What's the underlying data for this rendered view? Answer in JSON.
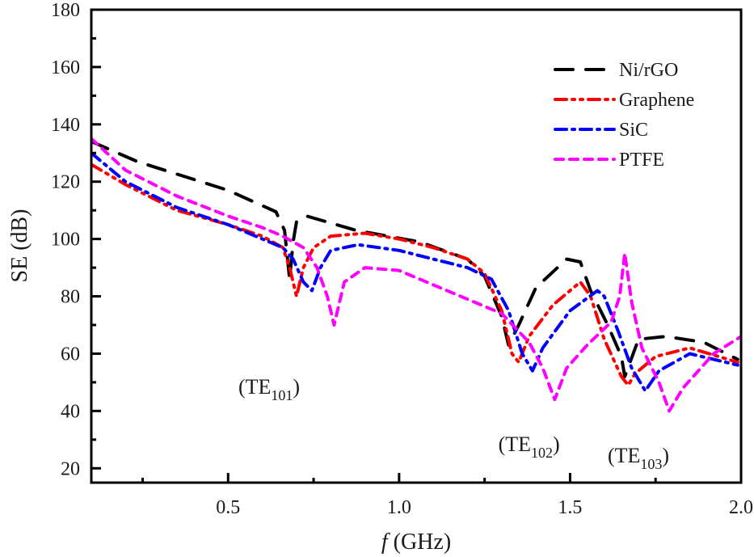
{
  "chart_data": {
    "type": "line",
    "title": "",
    "xlabel_italic": "f",
    "xlabel_rest": " (GHz)",
    "ylabel": "SE (dB)",
    "xlim": [
      0.1,
      2.0
    ],
    "ylim": [
      15,
      180
    ],
    "xticks": [
      0.5,
      1.0,
      1.5,
      2.0
    ],
    "xtick_labels": [
      "0.5",
      "1.0",
      "1.5",
      "2.0"
    ],
    "xminor": [
      0.25,
      0.75,
      1.25,
      1.75
    ],
    "yticks": [
      20,
      40,
      60,
      80,
      100,
      120,
      140,
      160,
      180
    ],
    "ytick_labels": [
      "20",
      "40",
      "60",
      "80",
      "100",
      "120",
      "140",
      "160",
      "180"
    ],
    "yminor": [
      30,
      50,
      70,
      90,
      110,
      130,
      150,
      170
    ],
    "grid": false,
    "legend_position": "top-right",
    "series": [
      {
        "name": "Ni/rGO",
        "color": "#000000",
        "style": "dash",
        "x": [
          0.1,
          0.235,
          0.5,
          0.64,
          0.665,
          0.68,
          0.69,
          0.7,
          0.73,
          0.875,
          1.06,
          1.2,
          1.25,
          1.3,
          1.32,
          1.35,
          1.4,
          1.49,
          1.53,
          1.56,
          1.61,
          1.65,
          1.66,
          1.7,
          1.78,
          1.89,
          1.99
        ],
        "y": [
          134,
          127,
          117,
          109.5,
          103,
          86,
          99,
          106,
          108,
          103,
          99,
          93,
          87,
          73,
          63,
          70,
          83,
          93,
          92,
          82,
          70,
          59,
          52,
          65,
          66,
          64,
          58
        ]
      },
      {
        "name": "Graphene",
        "color": "#ff0000",
        "style": "dash-dot-dot",
        "x": [
          0.1,
          0.2,
          0.35,
          0.5,
          0.6,
          0.66,
          0.68,
          0.7,
          0.72,
          0.75,
          0.8,
          0.9,
          1.0,
          1.1,
          1.2,
          1.25,
          1.3,
          1.33,
          1.35,
          1.38,
          1.45,
          1.53,
          1.56,
          1.6,
          1.65,
          1.67,
          1.69,
          1.75,
          1.85,
          1.99
        ],
        "y": [
          126,
          119,
          110,
          105,
          101,
          97,
          90,
          80,
          90,
          97,
          101,
          102,
          100,
          97,
          93,
          88,
          75,
          60,
          57,
          66,
          77,
          85,
          80,
          65,
          52,
          49,
          53,
          59,
          62,
          57
        ]
      },
      {
        "name": "SiC",
        "color": "#0000ff",
        "style": "dash-dot",
        "x": [
          0.1,
          0.2,
          0.35,
          0.5,
          0.6,
          0.66,
          0.69,
          0.72,
          0.745,
          0.77,
          0.8,
          0.88,
          1.0,
          1.1,
          1.2,
          1.27,
          1.32,
          1.36,
          1.39,
          1.42,
          1.5,
          1.58,
          1.6,
          1.64,
          1.68,
          1.72,
          1.76,
          1.85,
          1.99
        ],
        "y": [
          130,
          120,
          111,
          105,
          100,
          97,
          93,
          85,
          82,
          90,
          96,
          98,
          96,
          93,
          90,
          86,
          75,
          60,
          54,
          62,
          75,
          82,
          80,
          68,
          55,
          47,
          54,
          60,
          56
        ]
      },
      {
        "name": "PTFE",
        "color": "#ff00ff",
        "style": "short-dash",
        "x": [
          0.1,
          0.2,
          0.35,
          0.5,
          0.6,
          0.66,
          0.72,
          0.76,
          0.79,
          0.81,
          0.84,
          0.9,
          1.0,
          1.1,
          1.2,
          1.3,
          1.38,
          1.42,
          1.455,
          1.49,
          1.55,
          1.62,
          1.645,
          1.66,
          1.68,
          1.71,
          1.76,
          1.79,
          1.83,
          1.92,
          2.0
        ],
        "y": [
          135,
          124,
          115,
          108,
          104,
          101,
          97,
          90,
          80,
          70,
          85,
          90,
          89,
          84,
          79,
          74,
          64,
          55,
          44,
          55,
          63,
          71,
          80,
          95,
          78,
          62,
          50,
          40,
          48,
          60,
          66
        ]
      }
    ],
    "annotations": [
      {
        "base": "(TE",
        "sub": "101",
        "close": ")",
        "x": 0.62,
        "y": 46
      },
      {
        "base": "(TE",
        "sub": "102",
        "close": ")",
        "x": 1.38,
        "y": 26
      },
      {
        "base": "(TE",
        "sub": "103",
        "close": ")",
        "x": 1.7,
        "y": 22
      }
    ]
  }
}
